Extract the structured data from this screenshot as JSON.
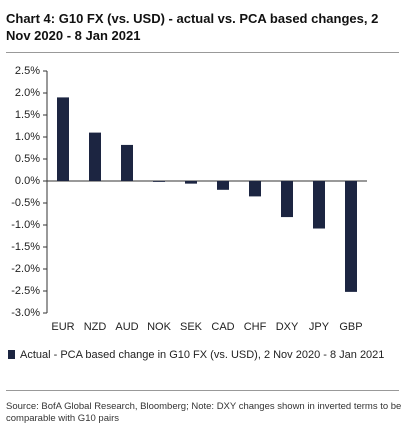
{
  "chart_data": {
    "type": "bar",
    "title": "Chart 4: G10 FX (vs. USD) - actual vs. PCA based changes, 2 Nov 2020 - 8 Jan 2021",
    "categories": [
      "EUR",
      "NZD",
      "AUD",
      "NOK",
      "SEK",
      "CAD",
      "CHF",
      "DXY",
      "JPY",
      "GBP"
    ],
    "series": [
      {
        "name": "Actual - PCA based change in G10 FX (vs. USD), 2 Nov 2020 - 8 Jan 2021",
        "color": "#1c2541",
        "values": [
          1.9,
          1.1,
          0.82,
          -0.02,
          -0.06,
          -0.2,
          -0.35,
          -0.82,
          -1.08,
          -2.52
        ]
      }
    ],
    "ylim": [
      -3.0,
      2.5
    ],
    "yticks": [
      {
        "value": 2.5,
        "label": "2.5%"
      },
      {
        "value": 2.0,
        "label": "2.0%"
      },
      {
        "value": 1.5,
        "label": "1.5%"
      },
      {
        "value": 1.0,
        "label": "1.0%"
      },
      {
        "value": 0.5,
        "label": "0.5%"
      },
      {
        "value": 0.0,
        "label": "0.0%"
      },
      {
        "value": -0.5,
        "label": "-0.5%"
      },
      {
        "value": -1.0,
        "label": "-1.0%"
      },
      {
        "value": -1.5,
        "label": "-1.5%"
      },
      {
        "value": -2.0,
        "label": "-2.0%"
      },
      {
        "value": -2.5,
        "label": "-2.5%"
      },
      {
        "value": -3.0,
        "label": "-3.0%"
      }
    ],
    "grid": false,
    "source": "Source: BofA Global Research, Bloomberg; Note: DXY changes shown in inverted terms to be comparable with G10 pairs"
  }
}
